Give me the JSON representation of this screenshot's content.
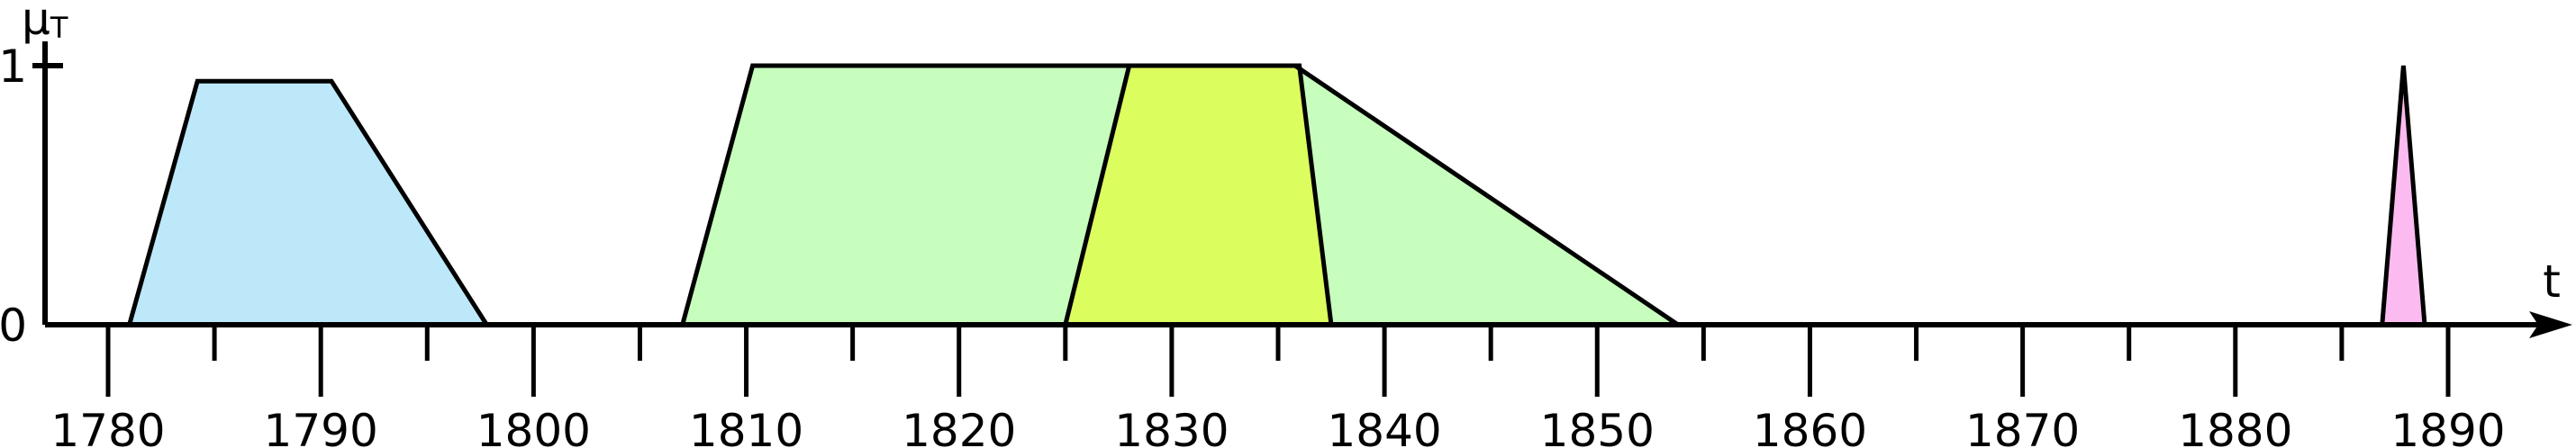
{
  "chart_data": {
    "type": "area",
    "title": "",
    "xlabel": "t",
    "ylabel": "μ",
    "ylabel_subscript": "T",
    "xlim": [
      1776,
      1895
    ],
    "ylim": [
      0,
      1
    ],
    "y_ticks": [
      {
        "value": 0,
        "label": "0"
      },
      {
        "value": 1,
        "label": "1"
      }
    ],
    "x_major_ticks": [
      1780,
      1790,
      1800,
      1810,
      1820,
      1830,
      1840,
      1850,
      1860,
      1870,
      1880,
      1890
    ],
    "x_major_labels": [
      "1780",
      "1790",
      "1800",
      "1810",
      "1820",
      "1830",
      "1840",
      "1850",
      "1860",
      "1870",
      "1880",
      "1890"
    ],
    "x_minor_ticks": [
      1785,
      1795,
      1805,
      1815,
      1825,
      1835,
      1845,
      1855,
      1865,
      1875,
      1885
    ],
    "grid": false,
    "legend": "none",
    "series": [
      {
        "color": "#bde8fa",
        "points": [
          [
            1781,
            0
          ],
          [
            1784.2,
            0.94
          ],
          [
            1790.5,
            0.94
          ],
          [
            1797.8,
            0
          ]
        ]
      },
      {
        "color": "#c7fdbd",
        "points": [
          [
            1807,
            0
          ],
          [
            1810.3,
            1
          ],
          [
            1835.8,
            1
          ],
          [
            1853.8,
            0
          ]
        ]
      },
      {
        "color": "#dcfd5e",
        "points": [
          [
            1825,
            0
          ],
          [
            1828,
            1
          ],
          [
            1836,
            1
          ],
          [
            1837.5,
            0
          ]
        ]
      },
      {
        "color": "#fcbbf0",
        "points": [
          [
            1886.9,
            0
          ],
          [
            1887.9,
            1
          ],
          [
            1888.9,
            0
          ]
        ]
      }
    ]
  }
}
